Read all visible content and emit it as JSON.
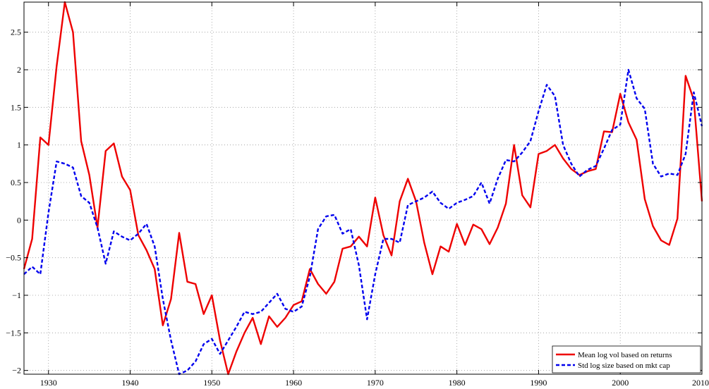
{
  "chart_data": {
    "type": "line",
    "title": "",
    "xlabel": "",
    "ylabel": "",
    "xlim": [
      1927,
      2010
    ],
    "ylim": [
      -2.05,
      2.9
    ],
    "x_ticks": [
      1930,
      1940,
      1950,
      1960,
      1970,
      1980,
      1990,
      2000,
      2010
    ],
    "y_ticks": [
      -2,
      -1.5,
      -1,
      -0.5,
      0,
      0.5,
      1,
      1.5,
      2,
      2.5
    ],
    "x_tick_labels": [
      "1930",
      "1940",
      "1950",
      "1960",
      "1970",
      "1980",
      "1990",
      "2000",
      "2010"
    ],
    "y_tick_labels": [
      "−2",
      "−1.5",
      "−1",
      "−0.5",
      "0",
      "0.5",
      "1",
      "1.5",
      "2",
      "2.5"
    ],
    "grid": true,
    "legend_position": "bottom-right",
    "x": [
      1927,
      1928,
      1929,
      1930,
      1931,
      1932,
      1933,
      1934,
      1935,
      1936,
      1937,
      1938,
      1939,
      1940,
      1941,
      1942,
      1943,
      1944,
      1945,
      1946,
      1947,
      1948,
      1949,
      1950,
      1951,
      1952,
      1953,
      1954,
      1955,
      1956,
      1957,
      1958,
      1959,
      1960,
      1961,
      1962,
      1963,
      1964,
      1965,
      1966,
      1967,
      1968,
      1969,
      1970,
      1971,
      1972,
      1973,
      1974,
      1975,
      1976,
      1977,
      1978,
      1979,
      1980,
      1981,
      1982,
      1983,
      1984,
      1985,
      1986,
      1987,
      1988,
      1989,
      1990,
      1991,
      1992,
      1993,
      1994,
      1995,
      1996,
      1997,
      1998,
      1999,
      2000,
      2001,
      2002,
      2003,
      2004,
      2005,
      2006,
      2007,
      2008,
      2009,
      2010
    ],
    "series": [
      {
        "name": "Mean log vol based on returns",
        "color": "#ee0000",
        "style": "solid",
        "values": [
          -0.65,
          -0.25,
          1.1,
          1.0,
          2.05,
          2.9,
          2.5,
          1.05,
          0.6,
          -0.1,
          0.92,
          1.02,
          0.58,
          0.4,
          -0.2,
          -0.4,
          -0.65,
          -1.4,
          -1.05,
          -0.17,
          -0.82,
          -0.85,
          -1.25,
          -1.0,
          -1.6,
          -2.05,
          -1.75,
          -1.5,
          -1.3,
          -1.65,
          -1.28,
          -1.42,
          -1.3,
          -1.13,
          -1.08,
          -0.65,
          -0.85,
          -0.98,
          -0.82,
          -0.38,
          -0.35,
          -0.22,
          -0.35,
          0.3,
          -0.2,
          -0.47,
          0.25,
          0.55,
          0.25,
          -0.3,
          -0.72,
          -0.35,
          -0.42,
          -0.05,
          -0.33,
          -0.06,
          -0.12,
          -0.32,
          -0.1,
          0.22,
          1.0,
          0.33,
          0.17,
          0.88,
          0.92,
          1.0,
          0.82,
          0.68,
          0.6,
          0.65,
          0.68,
          1.18,
          1.17,
          1.68,
          1.3,
          1.07,
          0.28,
          -0.08,
          -0.27,
          -0.33,
          0.02,
          1.92,
          1.6,
          0.25
        ]
      },
      {
        "name": "Std log size based on mkt cap",
        "color": "#0000ee",
        "style": "dashed",
        "values": [
          -0.72,
          -0.62,
          -0.72,
          0.1,
          0.78,
          0.75,
          0.7,
          0.32,
          0.23,
          -0.1,
          -0.58,
          -0.15,
          -0.22,
          -0.27,
          -0.18,
          -0.05,
          -0.35,
          -1.05,
          -1.6,
          -2.05,
          -2.0,
          -1.88,
          -1.65,
          -1.58,
          -1.78,
          -1.6,
          -1.42,
          -1.22,
          -1.25,
          -1.22,
          -1.1,
          -0.98,
          -1.18,
          -1.22,
          -1.15,
          -0.75,
          -0.12,
          0.05,
          0.07,
          -0.18,
          -0.12,
          -0.6,
          -1.32,
          -0.72,
          -0.25,
          -0.25,
          -0.3,
          0.2,
          0.25,
          0.3,
          0.38,
          0.23,
          0.15,
          0.23,
          0.27,
          0.32,
          0.5,
          0.22,
          0.55,
          0.8,
          0.78,
          0.9,
          1.05,
          1.45,
          1.8,
          1.65,
          1.0,
          0.75,
          0.58,
          0.67,
          0.72,
          0.95,
          1.2,
          1.27,
          2.0,
          1.62,
          1.48,
          0.75,
          0.58,
          0.62,
          0.6,
          0.88,
          1.7,
          1.25
        ]
      }
    ]
  }
}
